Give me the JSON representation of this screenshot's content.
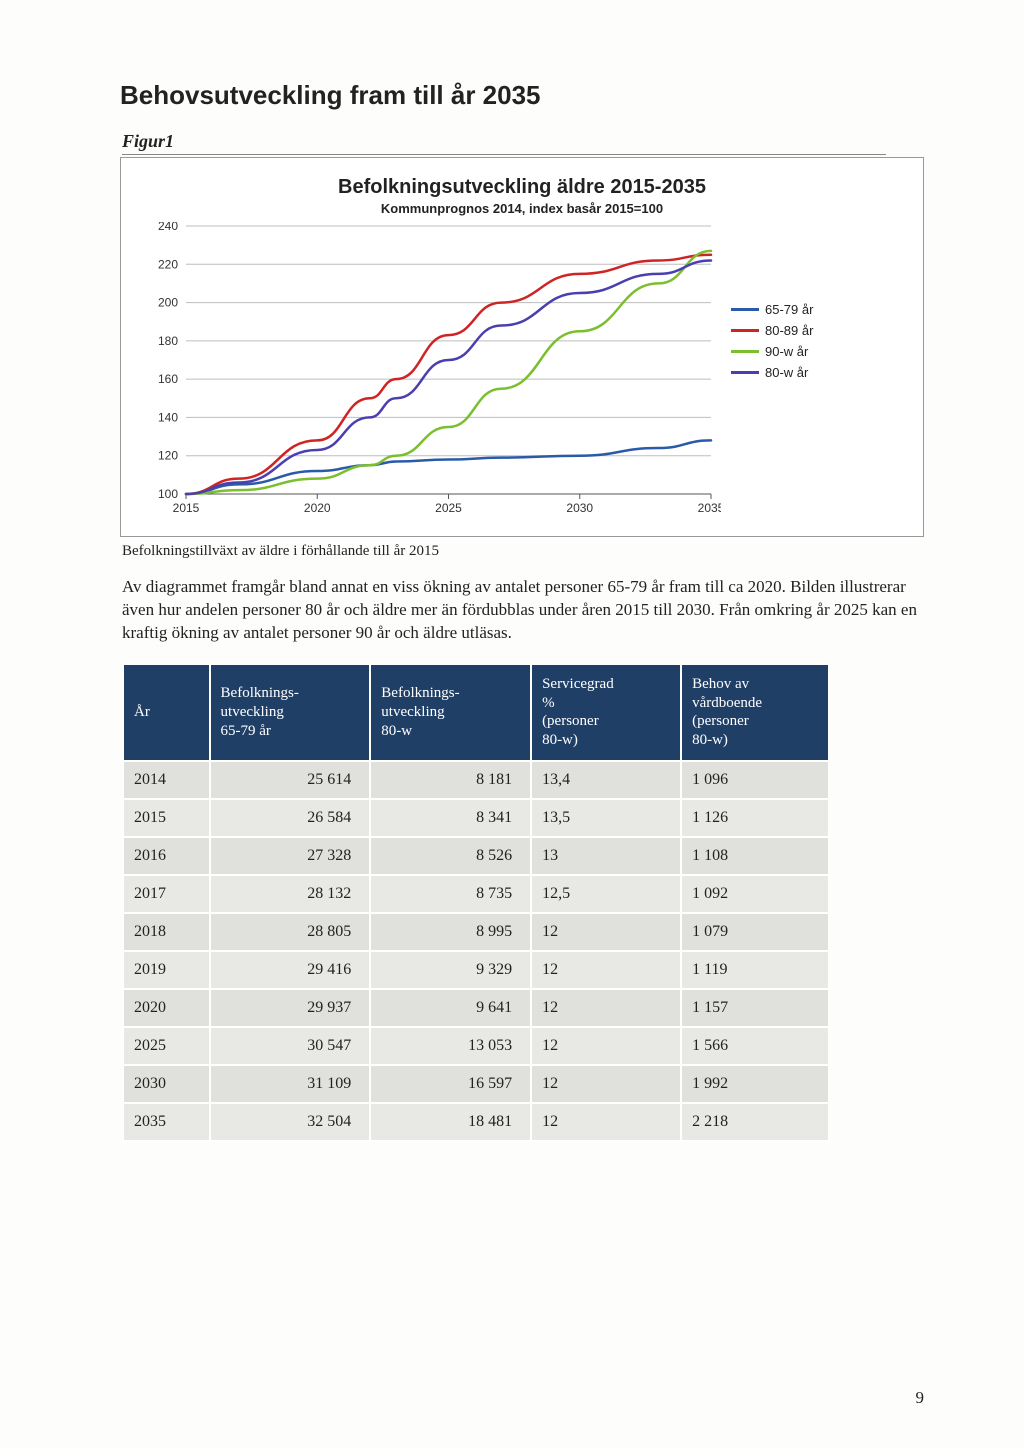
{
  "page": {
    "title": "Behovsutveckling fram till år 2035",
    "figure_label": "Figur1",
    "caption": "Befolkningstillväxt av äldre i förhållande till år 2015",
    "body": "Av diagrammet framgår bland annat en viss ökning av antalet personer 65-79 år fram till ca 2020. Bilden illustrerar även hur andelen personer 80 år och äldre mer än fördubblas under åren 2015 till 2030. Från omkring år 2025 kan en kraftig ökning av antalet personer 90 år och äldre utläsas.",
    "page_number": "9"
  },
  "chart": {
    "type": "line",
    "title": "Befolkningsutveckling äldre 2015-2035",
    "subtitle": "Kommunprognos 2014, index basår 2015=100",
    "x_label_years": [
      "2015",
      "2020",
      "2025",
      "2030",
      "2035"
    ],
    "y_ticks": [
      100,
      120,
      140,
      160,
      180,
      200,
      220,
      240
    ],
    "ylim": [
      100,
      240
    ],
    "xlim": [
      2015,
      2035
    ],
    "grid_color": "#bdbdbd",
    "axis_color": "#555555",
    "background_color": "#ffffff",
    "axis_fontsize": 12,
    "title_fontsize": 20,
    "line_width": 2.5,
    "series": [
      {
        "name": "65-79 år",
        "color": "#2a5aa8",
        "points": [
          [
            2015,
            100
          ],
          [
            2017,
            105
          ],
          [
            2020,
            112
          ],
          [
            2022,
            115
          ],
          [
            2023,
            117
          ],
          [
            2025,
            118
          ],
          [
            2027,
            119
          ],
          [
            2030,
            120
          ],
          [
            2033,
            124
          ],
          [
            2035,
            128
          ]
        ]
      },
      {
        "name": "80-89 år",
        "color": "#d02323",
        "points": [
          [
            2015,
            100
          ],
          [
            2017,
            108
          ],
          [
            2020,
            128
          ],
          [
            2022,
            150
          ],
          [
            2023,
            160
          ],
          [
            2025,
            183
          ],
          [
            2027,
            200
          ],
          [
            2030,
            215
          ],
          [
            2033,
            222
          ],
          [
            2035,
            225
          ]
        ]
      },
      {
        "name": "90-w år",
        "color": "#7bbf2e",
        "points": [
          [
            2015,
            100
          ],
          [
            2017,
            102
          ],
          [
            2020,
            108
          ],
          [
            2022,
            115
          ],
          [
            2023,
            120
          ],
          [
            2025,
            135
          ],
          [
            2027,
            155
          ],
          [
            2030,
            185
          ],
          [
            2033,
            210
          ],
          [
            2035,
            227
          ]
        ]
      },
      {
        "name": "80-w år",
        "color": "#4a3fae",
        "points": [
          [
            2015,
            100
          ],
          [
            2017,
            106
          ],
          [
            2020,
            123
          ],
          [
            2022,
            140
          ],
          [
            2023,
            150
          ],
          [
            2025,
            170
          ],
          [
            2027,
            188
          ],
          [
            2030,
            205
          ],
          [
            2033,
            215
          ],
          [
            2035,
            222
          ]
        ]
      }
    ]
  },
  "table": {
    "headers": [
      "År",
      "Befolknings-\nutveckling\n65-79 år",
      "Befolknings-\nutveckling\n80-w",
      "Servicegrad\n%\n(personer\n80-w)",
      "Behov av\nvårdboende\n(personer\n80-w)"
    ],
    "header_bg": "#1f3f66",
    "header_color": "#ffffff",
    "row_bg_odd": "#e0e0dc",
    "row_bg_even": "#e8e8e5",
    "rows": [
      [
        "2014",
        "25 614",
        "8 181",
        "13,4",
        "1 096"
      ],
      [
        "2015",
        "26 584",
        "8 341",
        "13,5",
        "1 126"
      ],
      [
        "2016",
        "27 328",
        "8 526",
        "13",
        "1 108"
      ],
      [
        "2017",
        "28 132",
        "8 735",
        "12,5",
        "1 092"
      ],
      [
        "2018",
        "28 805",
        "8 995",
        "12",
        "1 079"
      ],
      [
        "2019",
        "29 416",
        "9 329",
        "12",
        "1 119"
      ],
      [
        "2020",
        "29 937",
        "9 641",
        "12",
        "1 157"
      ],
      [
        "2025",
        "30 547",
        "13 053",
        "12",
        "1 566"
      ],
      [
        "2030",
        "31 109",
        "16 597",
        "12",
        "1 992"
      ],
      [
        "2035",
        "32 504",
        "18 481",
        "12",
        "2 218"
      ]
    ]
  }
}
